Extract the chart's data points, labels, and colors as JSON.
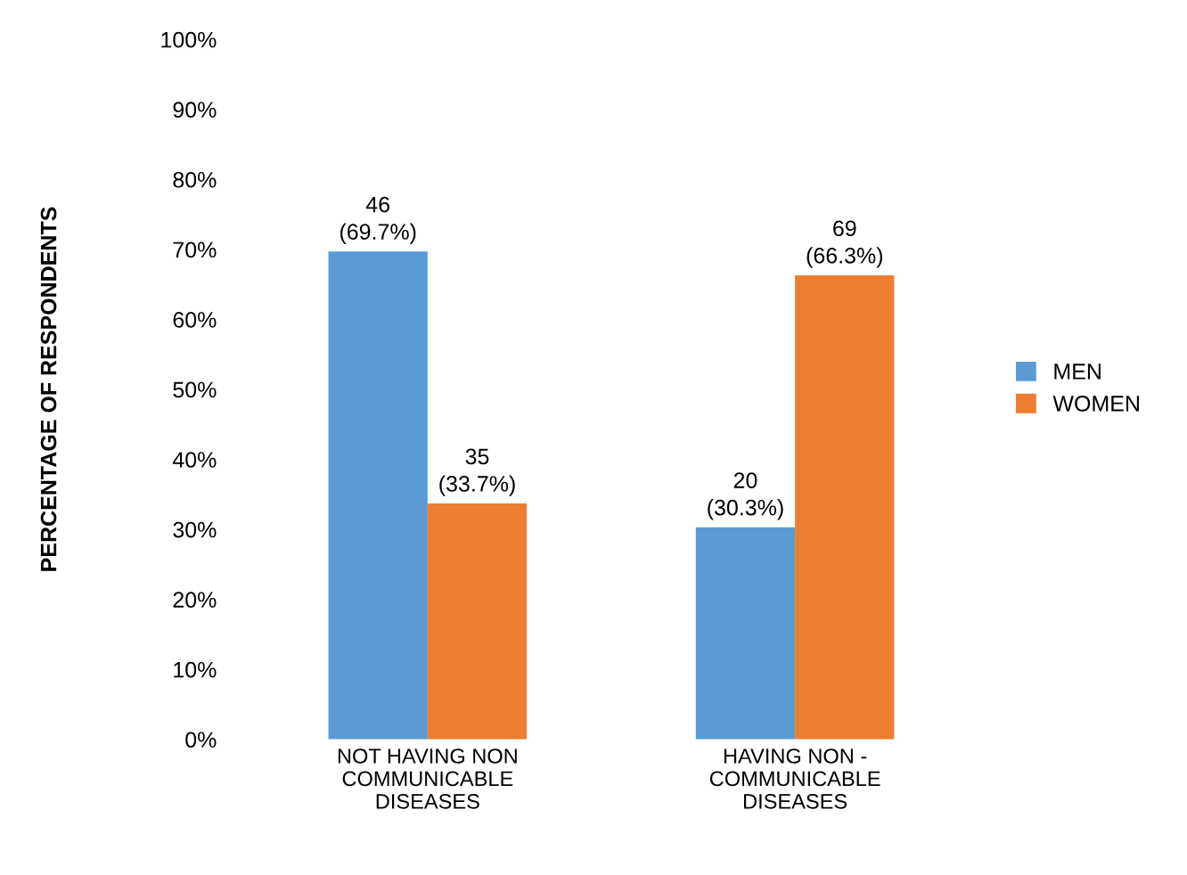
{
  "chart_data": {
    "type": "bar",
    "ylabel": "PERCENTAGE OF RESPONDENTS",
    "categories": [
      "NOT HAVING NON\nCOMMUNICABLE\nDISEASES",
      "HAVING NON -\nCOMMUNICABLE\nDISEASES"
    ],
    "series": [
      {
        "name": "MEN",
        "color": "#5b9bd5",
        "values": [
          69.7,
          30.3
        ],
        "value_labels": [
          "46\n(69.7%)",
          "20\n(30.3%)"
        ]
      },
      {
        "name": "WOMEN",
        "color": "#ed7d31",
        "values": [
          33.7,
          66.3
        ],
        "value_labels": [
          "35\n(33.7%)",
          "69\n(66.3%)"
        ]
      }
    ],
    "ylim": [
      0,
      100
    ],
    "yticks": [
      {
        "value": 0,
        "label": "0%"
      },
      {
        "value": 10,
        "label": "10%"
      },
      {
        "value": 20,
        "label": "20%"
      },
      {
        "value": 30,
        "label": "30%"
      },
      {
        "value": 40,
        "label": "40%"
      },
      {
        "value": 50,
        "label": "50%"
      },
      {
        "value": 60,
        "label": "60%"
      },
      {
        "value": 70,
        "label": "70%"
      },
      {
        "value": 80,
        "label": "80%"
      },
      {
        "value": 90,
        "label": "90%"
      },
      {
        "value": 100,
        "label": "100%"
      }
    ],
    "grid": false,
    "legend": "right"
  }
}
